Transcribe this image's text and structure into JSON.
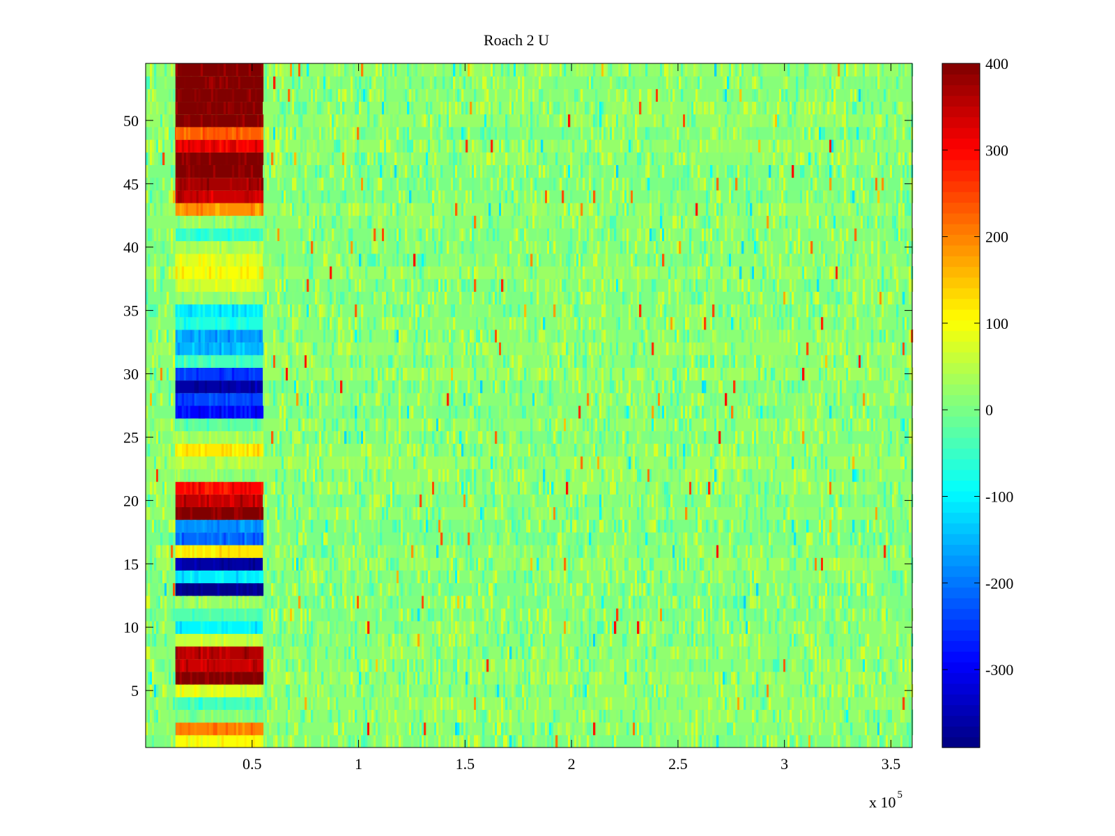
{
  "chart_data": {
    "type": "heatmap",
    "title": "Roach 2 U",
    "xlabel": "",
    "ylabel": "",
    "x_exponent_label": "x 10",
    "x_exponent_power": "5",
    "xlim": [
      0,
      360000
    ],
    "ylim": [
      0.5,
      54.5
    ],
    "x_ticks": [
      {
        "value": 50000,
        "label": "0.5"
      },
      {
        "value": 100000,
        "label": "1"
      },
      {
        "value": 150000,
        "label": "1.5"
      },
      {
        "value": 200000,
        "label": "2"
      },
      {
        "value": 250000,
        "label": "2.5"
      },
      {
        "value": 300000,
        "label": "3"
      },
      {
        "value": 350000,
        "label": "3.5"
      }
    ],
    "y_ticks": [
      {
        "value": 5,
        "label": "5"
      },
      {
        "value": 10,
        "label": "10"
      },
      {
        "value": 15,
        "label": "15"
      },
      {
        "value": 20,
        "label": "20"
      },
      {
        "value": 25,
        "label": "25"
      },
      {
        "value": 30,
        "label": "30"
      },
      {
        "value": 35,
        "label": "35"
      },
      {
        "value": 40,
        "label": "40"
      },
      {
        "value": 45,
        "label": "45"
      },
      {
        "value": 50,
        "label": "50"
      }
    ],
    "colorbar": {
      "colormap": "jet",
      "clim": [
        -390,
        400
      ],
      "ticks": [
        {
          "value": 400,
          "label": "400"
        },
        {
          "value": 300,
          "label": "300"
        },
        {
          "value": 200,
          "label": "200"
        },
        {
          "value": 100,
          "label": "100"
        },
        {
          "value": 0,
          "label": "0"
        },
        {
          "value": -100,
          "label": "-100"
        },
        {
          "value": -200,
          "label": "-200"
        },
        {
          "value": -300,
          "label": "-300"
        }
      ]
    },
    "background_level": 15,
    "active_block": {
      "x_range": [
        14000,
        55000
      ],
      "row_values": [
        {
          "row": 1,
          "value": 100
        },
        {
          "row": 2,
          "value": 200
        },
        {
          "row": 3,
          "value": 0
        },
        {
          "row": 4,
          "value": -40
        },
        {
          "row": 5,
          "value": 80
        },
        {
          "row": 6,
          "value": 400
        },
        {
          "row": 7,
          "value": 340
        },
        {
          "row": 8,
          "value": 360
        },
        {
          "row": 9,
          "value": 60
        },
        {
          "row": 10,
          "value": -100
        },
        {
          "row": 11,
          "value": -30
        },
        {
          "row": 12,
          "value": 20
        },
        {
          "row": 13,
          "value": -380
        },
        {
          "row": 14,
          "value": -110
        },
        {
          "row": 15,
          "value": -360
        },
        {
          "row": 16,
          "value": 120
        },
        {
          "row": 17,
          "value": -210
        },
        {
          "row": 18,
          "value": -180
        },
        {
          "row": 19,
          "value": 400
        },
        {
          "row": 20,
          "value": 350
        },
        {
          "row": 21,
          "value": 300
        },
        {
          "row": 22,
          "value": 20
        },
        {
          "row": 23,
          "value": 50
        },
        {
          "row": 24,
          "value": 120
        },
        {
          "row": 25,
          "value": 30
        },
        {
          "row": 26,
          "value": -20
        },
        {
          "row": 27,
          "value": -290
        },
        {
          "row": 28,
          "value": -240
        },
        {
          "row": 29,
          "value": -360
        },
        {
          "row": 30,
          "value": -250
        },
        {
          "row": 31,
          "value": -40
        },
        {
          "row": 32,
          "value": -150
        },
        {
          "row": 33,
          "value": -170
        },
        {
          "row": 34,
          "value": -70
        },
        {
          "row": 35,
          "value": -110
        },
        {
          "row": 36,
          "value": 20
        },
        {
          "row": 37,
          "value": 70
        },
        {
          "row": 38,
          "value": 100
        },
        {
          "row": 39,
          "value": 80
        },
        {
          "row": 40,
          "value": 40
        },
        {
          "row": 41,
          "value": -60
        },
        {
          "row": 42,
          "value": 20
        },
        {
          "row": 43,
          "value": 190
        },
        {
          "row": 44,
          "value": 340
        },
        {
          "row": 45,
          "value": 370
        },
        {
          "row": 46,
          "value": 400
        },
        {
          "row": 47,
          "value": 400
        },
        {
          "row": 48,
          "value": 310
        },
        {
          "row": 49,
          "value": 230
        },
        {
          "row": 50,
          "value": 400
        },
        {
          "row": 51,
          "value": 400
        },
        {
          "row": 52,
          "value": 400
        },
        {
          "row": 53,
          "value": 400
        },
        {
          "row": 54,
          "value": 400
        }
      ]
    }
  }
}
